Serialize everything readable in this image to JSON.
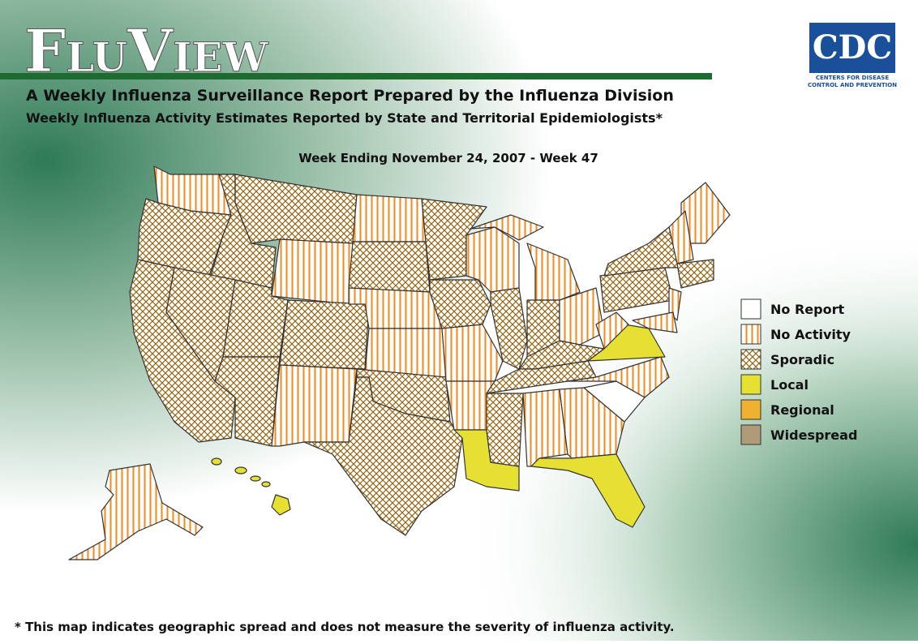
{
  "header": {
    "title": "FluView",
    "subtitle": "A Weekly Influenza Surveillance Report Prepared by the Influenza Division",
    "subtitle2": "Weekly Influenza Activity Estimates Reported by State and Territorial Epidemiologists*"
  },
  "logo": {
    "mark": "CDC",
    "line1": "Centers for Disease",
    "line2": "Control and Prevention"
  },
  "map": {
    "title": "Week Ending November 24, 2007 - Week 47"
  },
  "legend": {
    "items": [
      "No Report",
      "No Activity",
      "Sporadic",
      "Local",
      "Regional",
      "Widespread"
    ]
  },
  "footnote": "* This map indicates geographic spread and does not measure the severity of influenza activity."
}
